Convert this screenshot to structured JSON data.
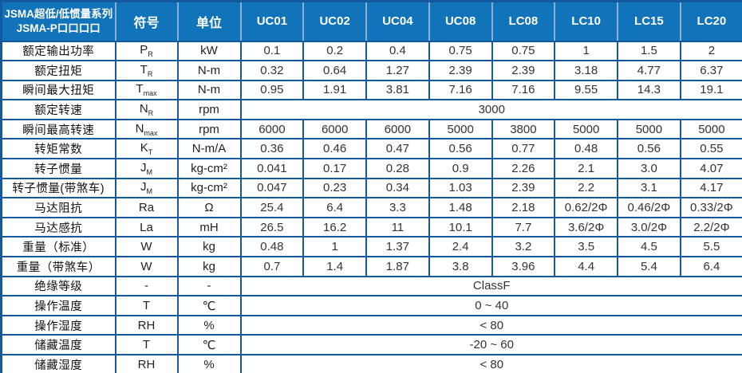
{
  "header": {
    "title_line1": "JSMA超低/低惯量系列",
    "title_line2": "JSMA-P口口口口",
    "symbol_col": "符号",
    "unit_col": "单位",
    "models": [
      "UC01",
      "UC02",
      "UC04",
      "UC08",
      "LC08",
      "LC10",
      "LC15",
      "LC20"
    ]
  },
  "colors": {
    "header_bg": "#1173b9",
    "border": "#14599c",
    "header_divider": "#8fb0d6",
    "header_text": "#ffffff",
    "body_text": "#333333"
  },
  "table": {
    "rows": [
      {
        "label": "额定输出功率",
        "symbol": "P",
        "sub": "R",
        "unit": "kW",
        "values": [
          "0.1",
          "0.2",
          "0.4",
          "0.75",
          "0.75",
          "1",
          "1.5",
          "2"
        ]
      },
      {
        "label": "额定扭矩",
        "symbol": "T",
        "sub": "R",
        "unit": "N-m",
        "values": [
          "0.32",
          "0.64",
          "1.27",
          "2.39",
          "2.39",
          "3.18",
          "4.77",
          "6.37"
        ]
      },
      {
        "label": "瞬间最大扭矩",
        "symbol": "T",
        "sub": "max",
        "unit": "N-m",
        "values": [
          "0.95",
          "1.91",
          "3.81",
          "7.16",
          "7.16",
          "9.55",
          "14.3",
          "19.1"
        ]
      },
      {
        "label": "额定转速",
        "symbol": "N",
        "sub": "R",
        "unit": "rpm",
        "merged": "3000"
      },
      {
        "label": "瞬间最高转速",
        "symbol": "N",
        "sub": "max",
        "unit": "rpm",
        "values": [
          "6000",
          "6000",
          "6000",
          "5000",
          "3800",
          "5000",
          "5000",
          "5000"
        ]
      },
      {
        "label": "转矩常数",
        "symbol": "K",
        "sub": "T",
        "unit": "N-m/A",
        "values": [
          "0.36",
          "0.46",
          "0.47",
          "0.56",
          "0.77",
          "0.48",
          "0.56",
          "0.55"
        ]
      },
      {
        "label": "转子惯量",
        "symbol": "J",
        "sub": "M",
        "unit": "kg-cm²",
        "values": [
          "0.041",
          "0.17",
          "0.28",
          "0.9",
          "2.26",
          "2.1",
          "3.0",
          "4.07"
        ]
      },
      {
        "label": "转子惯量(带煞车)",
        "symbol": "J",
        "sub": "M",
        "unit": "kg-cm²",
        "values": [
          "0.047",
          "0.23",
          "0.34",
          "1.03",
          "2.39",
          "2.2",
          "3.1",
          "4.17"
        ]
      },
      {
        "label": "马达阻抗",
        "symbol": "Ra",
        "sub": "",
        "unit": "Ω",
        "values": [
          "25.4",
          "6.4",
          "3.3",
          "1.48",
          "2.18",
          "0.62/2Φ",
          "0.46/2Φ",
          "0.33/2Φ"
        ]
      },
      {
        "label": "马达感抗",
        "symbol": "La",
        "sub": "",
        "unit": "mH",
        "values": [
          "26.5",
          "16.2",
          "11",
          "10.1",
          "7.7",
          "3.6/2Φ",
          "3.0/2Φ",
          "2.2/2Φ"
        ]
      },
      {
        "label": "重量（标准）",
        "symbol": "W",
        "sub": "",
        "unit": "kg",
        "values": [
          "0.48",
          "1",
          "1.37",
          "2.4",
          "3.2",
          "3.5",
          "4.5",
          "5.5"
        ]
      },
      {
        "label": "重量（带煞车）",
        "symbol": "W",
        "sub": "",
        "unit": "kg",
        "values": [
          "0.7",
          "1.4",
          "1.87",
          "3.8",
          "3.96",
          "4.4",
          "5.4",
          "6.4"
        ]
      },
      {
        "label": "绝缘等级",
        "symbol": "-",
        "sub": "",
        "unit": "-",
        "merged": "ClassF"
      },
      {
        "label": "操作温度",
        "symbol": "T",
        "sub": "",
        "unit": "℃",
        "merged": "0 ~ 40"
      },
      {
        "label": "操作湿度",
        "symbol": "RH",
        "sub": "",
        "unit": "%",
        "merged": "< 80"
      },
      {
        "label": "储藏温度",
        "symbol": "T",
        "sub": "",
        "unit": "℃",
        "merged": "-20 ~ 60"
      },
      {
        "label": "储藏湿度",
        "symbol": "RH",
        "sub": "",
        "unit": "%",
        "merged": "< 80"
      }
    ]
  }
}
